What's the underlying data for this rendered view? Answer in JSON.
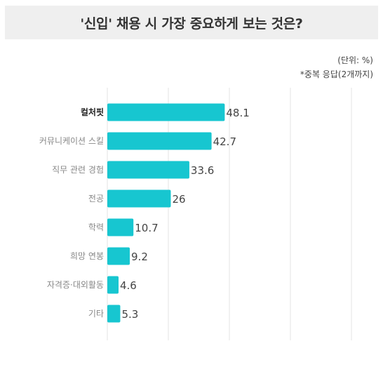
{
  "chart_data": {
    "type": "bar",
    "orientation": "horizontal",
    "title": "'신입' 채용 시 가장 중요하게 보는 것은?",
    "unit_note": "(단위: %)",
    "multi_response_note": "*중복 응답(2개까지)",
    "categories": [
      "컬처핏",
      "커뮤니케이션 스킬",
      "직무 관련 경험",
      "전공",
      "학력",
      "희망 연봉",
      "자격증·대외활동",
      "기타"
    ],
    "values": [
      48.1,
      42.7,
      33.6,
      26,
      10.7,
      9.2,
      4.6,
      5.3
    ],
    "value_labels": [
      "48.1",
      "42.7",
      "33.6",
      "26",
      "10.7",
      "9.2",
      "4.6",
      "5.3"
    ],
    "highlight_category": "컬처핏",
    "xlim": [
      0,
      100
    ],
    "grid": true,
    "colors": {
      "bar": "#17c6d0",
      "grid": "#e3e3e3",
      "label": "#888888",
      "label_highlight": "#222222",
      "value": "#444444"
    }
  }
}
